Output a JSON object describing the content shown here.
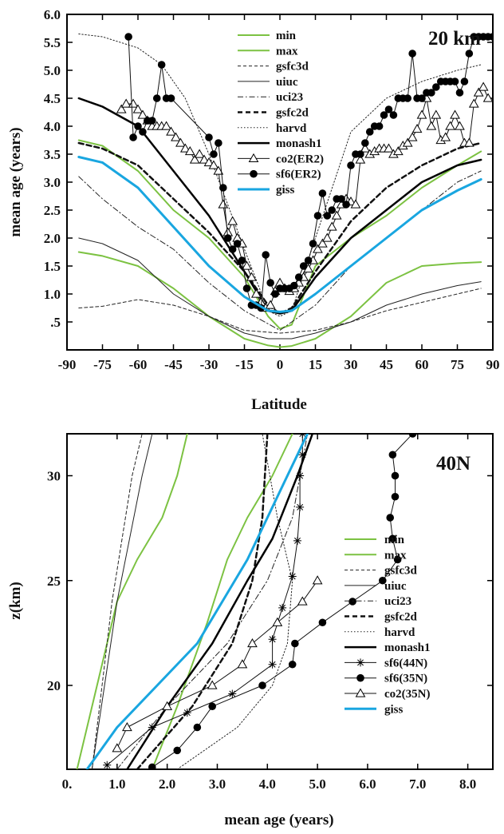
{
  "chart_data": [
    {
      "type": "line",
      "panel_label": "20 km",
      "xlabel": "Latitude",
      "ylabel": "mean age (years)",
      "xlim": [
        -90,
        90
      ],
      "ylim": [
        0.0,
        6.0
      ],
      "xticks": [
        "-90",
        "-75",
        "-60",
        "-45",
        "-30",
        "-15",
        "0",
        "15",
        "30",
        "45",
        "60",
        "75",
        "90"
      ],
      "xtick_values": [
        -90,
        -75,
        -60,
        -45,
        -30,
        -15,
        0,
        15,
        30,
        45,
        60,
        75,
        90
      ],
      "yticks": [
        ".5",
        "1.0",
        "1.5",
        "2.0",
        "2.5",
        "3.0",
        "3.5",
        "4.0",
        "4.5",
        "5.0",
        "5.5",
        "6.0"
      ],
      "ytick_values": [
        0.5,
        1.0,
        1.5,
        2.0,
        2.5,
        3.0,
        3.5,
        4.0,
        4.5,
        5.0,
        5.5,
        6.0
      ],
      "legend_position": "top-center",
      "series": [
        {
          "name": "min",
          "color": "#7cc242",
          "style": "solid",
          "width": 2,
          "x": [
            -85,
            -75,
            -60,
            -45,
            -30,
            -15,
            -5,
            0,
            5,
            15,
            30,
            45,
            60,
            75,
            85
          ],
          "y": [
            1.75,
            1.68,
            1.5,
            1.1,
            0.6,
            0.2,
            0.08,
            0.05,
            0.07,
            0.2,
            0.6,
            1.2,
            1.5,
            1.55,
            1.57
          ]
        },
        {
          "name": "max",
          "color": "#7cc242",
          "style": "solid",
          "width": 2,
          "x": [
            -85,
            -75,
            -60,
            -45,
            -30,
            -15,
            -5,
            0,
            5,
            15,
            30,
            45,
            60,
            75,
            85
          ],
          "y": [
            3.75,
            3.65,
            3.2,
            2.5,
            2.0,
            1.3,
            0.6,
            0.38,
            0.45,
            1.5,
            2.0,
            2.4,
            2.9,
            3.3,
            3.55
          ]
        },
        {
          "name": "gsfc3d",
          "color": "#222222",
          "style": "dashed",
          "width": 1,
          "x": [
            -85,
            -75,
            -60,
            -45,
            -30,
            -15,
            0,
            15,
            30,
            45,
            60,
            75,
            85
          ],
          "y": [
            0.75,
            0.78,
            0.9,
            0.8,
            0.6,
            0.35,
            0.3,
            0.35,
            0.5,
            0.7,
            0.85,
            1.0,
            1.1
          ]
        },
        {
          "name": "uiuc",
          "color": "#222222",
          "style": "solid",
          "width": 1,
          "x": [
            -85,
            -75,
            -60,
            -45,
            -30,
            -15,
            -5,
            0,
            5,
            15,
            30,
            45,
            60,
            75,
            85
          ],
          "y": [
            2.0,
            1.9,
            1.6,
            1.0,
            0.6,
            0.3,
            0.2,
            0.2,
            0.2,
            0.3,
            0.5,
            0.8,
            1.0,
            1.15,
            1.22
          ]
        },
        {
          "name": "uci23",
          "color": "#222222",
          "style": "dashdot",
          "width": 1,
          "x": [
            -85,
            -75,
            -60,
            -45,
            -30,
            -15,
            0,
            15,
            30,
            45,
            60,
            75,
            85
          ],
          "y": [
            3.1,
            2.7,
            2.2,
            1.8,
            1.2,
            0.7,
            0.35,
            0.8,
            1.5,
            2.0,
            2.5,
            3.0,
            3.2
          ]
        },
        {
          "name": "gsfc2d",
          "color": "#111111",
          "style": "bolddash",
          "width": 2.5,
          "x": [
            -85,
            -75,
            -60,
            -45,
            -30,
            -15,
            -5,
            0,
            5,
            15,
            30,
            45,
            60,
            75,
            85
          ],
          "y": [
            3.7,
            3.6,
            3.3,
            2.7,
            2.1,
            1.4,
            0.8,
            0.65,
            0.75,
            1.4,
            2.3,
            2.9,
            3.3,
            3.6,
            3.7
          ]
        },
        {
          "name": "harvd",
          "color": "#222222",
          "style": "dotted",
          "width": 1,
          "x": [
            -85,
            -75,
            -60,
            -50,
            -40,
            -30,
            -15,
            -5,
            0,
            5,
            15,
            30,
            45,
            60,
            75,
            85
          ],
          "y": [
            5.65,
            5.6,
            5.4,
            5.1,
            4.5,
            3.5,
            1.8,
            0.7,
            0.6,
            0.7,
            2.0,
            3.9,
            4.5,
            4.8,
            5.0,
            5.1
          ]
        },
        {
          "name": "monash1",
          "color": "#000000",
          "style": "solid",
          "width": 2.5,
          "x": [
            -85,
            -75,
            -60,
            -45,
            -30,
            -15,
            -5,
            0,
            5,
            15,
            30,
            45,
            60,
            75,
            85
          ],
          "y": [
            4.5,
            4.35,
            4.0,
            3.2,
            2.4,
            1.4,
            0.7,
            0.65,
            0.7,
            1.3,
            2.0,
            2.5,
            3.0,
            3.3,
            3.4
          ]
        },
        {
          "name": "co2(ER2)",
          "color": "#111111",
          "style": "solid",
          "width": 1,
          "marker": "triangle",
          "x": [
            -67,
            -65,
            -62,
            -60,
            -58,
            -56,
            -54,
            -52,
            -50,
            -48,
            -46,
            -44,
            -42,
            -40,
            -38,
            -36,
            -34,
            -32,
            -30,
            -28,
            -26,
            -24,
            -22,
            -20,
            -18,
            -16,
            -14,
            -12,
            -10,
            -8,
            -6,
            -4,
            -2,
            0,
            2,
            4,
            6,
            8,
            10,
            12,
            14,
            16,
            18,
            20,
            22,
            24,
            26,
            28,
            30,
            32,
            34,
            36,
            38,
            40,
            42,
            44,
            46,
            48,
            50,
            52,
            54,
            56,
            58,
            60,
            62,
            64,
            66,
            68,
            70,
            72,
            74,
            76,
            78,
            80,
            82,
            84,
            86,
            88
          ],
          "y": [
            4.3,
            4.4,
            4.4,
            4.3,
            4.2,
            4.1,
            4.0,
            4.0,
            4.0,
            4.0,
            3.9,
            3.8,
            3.7,
            3.6,
            3.55,
            3.4,
            3.5,
            3.4,
            3.35,
            3.3,
            3.2,
            2.6,
            2.1,
            2.3,
            2.0,
            1.9,
            1.5,
            1.3,
            1.0,
            0.85,
            0.75,
            0.8,
            1.05,
            1.2,
            1.1,
            1.05,
            1.1,
            1.2,
            1.3,
            1.45,
            1.6,
            1.8,
            1.9,
            2.0,
            2.2,
            2.4,
            2.6,
            2.7,
            2.65,
            2.6,
            3.4,
            3.6,
            3.5,
            3.55,
            3.6,
            3.6,
            3.6,
            3.5,
            3.55,
            3.65,
            3.7,
            3.8,
            3.95,
            4.2,
            4.5,
            4.0,
            4.2,
            3.75,
            3.8,
            4.0,
            4.2,
            4.0,
            3.7,
            3.7,
            4.4,
            4.6,
            4.7,
            4.5
          ]
        },
        {
          "name": "sf6(ER2)",
          "color": "#111111",
          "style": "solid",
          "width": 1,
          "marker": "circle",
          "x": [
            -64,
            -62,
            -60,
            -58,
            -56,
            -54,
            -52,
            -50,
            -48,
            -46,
            -30,
            -28,
            -26,
            -24,
            -22,
            -20,
            -18,
            -16,
            -14,
            -12,
            -10,
            -8,
            -6,
            -4,
            -2,
            0,
            2,
            4,
            6,
            8,
            10,
            12,
            14,
            16,
            18,
            20,
            22,
            24,
            26,
            28,
            30,
            32,
            34,
            36,
            38,
            40,
            42,
            44,
            46,
            48,
            50,
            52,
            54,
            56,
            58,
            60,
            62,
            64,
            66,
            68,
            70,
            72,
            74,
            76,
            78,
            80,
            82,
            84,
            86,
            88,
            90
          ],
          "y": [
            5.6,
            3.8,
            4.0,
            3.9,
            4.1,
            4.1,
            4.5,
            5.1,
            4.5,
            4.5,
            3.8,
            3.5,
            3.7,
            2.9,
            2.0,
            1.8,
            1.9,
            1.6,
            1.1,
            0.8,
            0.8,
            0.75,
            1.7,
            1.2,
            1.0,
            1.1,
            1.1,
            1.1,
            1.15,
            1.3,
            1.5,
            1.6,
            1.9,
            2.4,
            2.8,
            2.4,
            2.5,
            2.7,
            2.7,
            2.6,
            3.3,
            3.5,
            3.5,
            3.7,
            3.9,
            4.0,
            4.0,
            4.2,
            4.3,
            4.2,
            4.5,
            4.5,
            4.5,
            5.3,
            4.5,
            4.5,
            4.6,
            4.6,
            4.7,
            4.8,
            4.8,
            4.8,
            4.8,
            4.6,
            4.8,
            5.3,
            5.6,
            5.6,
            5.6,
            5.6,
            5.6
          ]
        },
        {
          "name": "giss",
          "color": "#19a6e0",
          "style": "solid",
          "width": 3,
          "x": [
            -85,
            -75,
            -60,
            -45,
            -30,
            -15,
            -5,
            0,
            5,
            15,
            30,
            45,
            60,
            75,
            85
          ],
          "y": [
            3.45,
            3.35,
            2.9,
            2.2,
            1.5,
            0.95,
            0.7,
            0.68,
            0.7,
            1.0,
            1.5,
            2.0,
            2.5,
            2.85,
            3.05
          ]
        }
      ]
    },
    {
      "type": "line",
      "panel_label": "40N",
      "xlabel": "mean age (years)",
      "ylabel": "z(km)",
      "xlim": [
        0.0,
        8.5
      ],
      "ylim": [
        16.0,
        32.0
      ],
      "xticks": [
        "0.",
        "1.0",
        "2.0",
        "3.0",
        "4.0",
        "5.0",
        "6.0",
        "7.0",
        "8.0"
      ],
      "xtick_values": [
        0,
        1,
        2,
        3,
        4,
        5,
        6,
        7,
        8
      ],
      "yticks": [
        "20",
        "25",
        "30"
      ],
      "ytick_values": [
        20,
        25,
        30
      ],
      "legend_position": "right",
      "series": [
        {
          "name": "min",
          "color": "#7cc242",
          "style": "solid",
          "width": 2,
          "x": [
            0.2,
            0.6,
            1.0,
            1.4,
            1.9,
            2.2,
            2.4
          ],
          "y": [
            16,
            20,
            24,
            26,
            28,
            30,
            32
          ]
        },
        {
          "name": "max",
          "color": "#7cc242",
          "style": "solid",
          "width": 2,
          "x": [
            1.7,
            2.2,
            2.8,
            3.2,
            3.6,
            4.1,
            4.5
          ],
          "y": [
            16,
            19,
            23,
            26,
            28,
            30,
            32
          ]
        },
        {
          "name": "gsfc3d",
          "color": "#222222",
          "style": "dashed",
          "width": 1,
          "x": [
            0.5,
            0.7,
            0.9,
            1.1,
            1.3,
            1.5
          ],
          "y": [
            16,
            20,
            24,
            27,
            30,
            32
          ]
        },
        {
          "name": "uiuc",
          "color": "#222222",
          "style": "solid",
          "width": 1,
          "x": [
            0.5,
            0.75,
            1.0,
            1.25,
            1.5,
            1.7
          ],
          "y": [
            16,
            20,
            24,
            27,
            30,
            32
          ]
        },
        {
          "name": "uci23",
          "color": "#222222",
          "style": "dashdot",
          "width": 1,
          "x": [
            1.0,
            2.0,
            3.2,
            4.0,
            4.5,
            4.8
          ],
          "y": [
            16,
            19,
            22,
            25,
            28,
            32
          ]
        },
        {
          "name": "gsfc2d",
          "color": "#111111",
          "style": "bolddash",
          "width": 2.5,
          "x": [
            1.4,
            2.5,
            3.3,
            3.7,
            3.9,
            4.0
          ],
          "y": [
            16,
            19,
            22,
            25,
            28,
            32
          ]
        },
        {
          "name": "harvd",
          "color": "#222222",
          "style": "dotted",
          "width": 1,
          "x": [
            2.2,
            3.4,
            4.1,
            4.4,
            4.5,
            4.2,
            3.9
          ],
          "y": [
            16,
            18,
            20,
            22,
            25,
            28,
            32
          ]
        },
        {
          "name": "monash1",
          "color": "#000000",
          "style": "solid",
          "width": 2.5,
          "x": [
            1.2,
            2.0,
            2.9,
            3.6,
            4.1,
            4.6,
            4.9
          ],
          "y": [
            16,
            19,
            22,
            25,
            27,
            30,
            32
          ]
        },
        {
          "name": "sf6(44N)",
          "color": "#111111",
          "style": "solid",
          "width": 1,
          "marker": "star",
          "x": [
            0.8,
            1.7,
            2.4,
            3.3,
            4.1,
            4.1,
            4.3,
            4.5,
            4.6,
            4.65,
            4.65,
            4.7,
            4.7
          ],
          "y": [
            16.2,
            18,
            18.7,
            19.6,
            21,
            22.2,
            23.7,
            25.2,
            26.9,
            28.5,
            30,
            31,
            32
          ]
        },
        {
          "name": "sf6(35N)",
          "color": "#111111",
          "style": "solid",
          "width": 1,
          "marker": "circle",
          "x": [
            1.7,
            2.2,
            2.6,
            2.9,
            3.9,
            4.5,
            4.55,
            5.1,
            5.7,
            6.3,
            6.6,
            6.5,
            6.45,
            6.55,
            6.55,
            6.5,
            6.9
          ],
          "y": [
            16.1,
            16.9,
            18,
            19,
            20,
            21,
            22,
            23,
            24,
            25,
            26,
            27,
            28,
            29,
            30,
            31,
            32
          ]
        },
        {
          "name": "co2(35N)",
          "color": "#111111",
          "style": "solid",
          "width": 1,
          "marker": "triangle",
          "x": [
            1.0,
            1.2,
            2.0,
            2.9,
            3.5,
            3.7,
            4.2,
            4.7,
            5.0
          ],
          "y": [
            17,
            18,
            19,
            20,
            21,
            22,
            23,
            24,
            25
          ]
        },
        {
          "name": "giss",
          "color": "#19a6e0",
          "style": "solid",
          "width": 3,
          "x": [
            0.4,
            1.0,
            1.8,
            2.6,
            3.1,
            3.6,
            4.0,
            4.4,
            4.8
          ],
          "y": [
            16,
            18,
            20,
            22,
            24,
            26,
            28,
            30,
            32
          ]
        }
      ]
    }
  ]
}
